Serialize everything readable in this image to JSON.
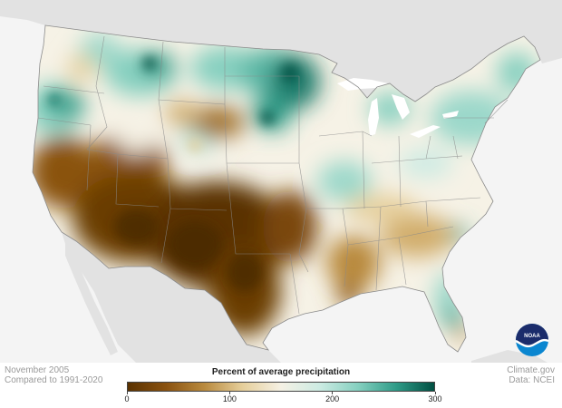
{
  "footer": {
    "date": "November 2005",
    "baseline": "Compared to 1991-2020",
    "source": "Climate.gov",
    "data_source": "Data: NCEI"
  },
  "legend": {
    "title": "Percent of average precipitation",
    "ticks": [
      {
        "label": "0",
        "value": 0
      },
      {
        "label": "100",
        "value": 100
      },
      {
        "label": "200",
        "value": 200
      },
      {
        "label": "300",
        "value": 300
      }
    ],
    "min": 0,
    "max": 300,
    "colors": [
      "#5a3200",
      "#8a5210",
      "#b98a3e",
      "#e6cf9b",
      "#f5f1e4",
      "#cdebe3",
      "#86d0c0",
      "#2f9c88",
      "#004f42"
    ]
  },
  "logo": {
    "name": "NOAA",
    "text": "NOAA"
  },
  "map_colors": {
    "ocean": "#f4f4f4",
    "neighbors": "#e2e2e2",
    "borders": "#8a8a8a",
    "lakes": "#ffffff"
  }
}
